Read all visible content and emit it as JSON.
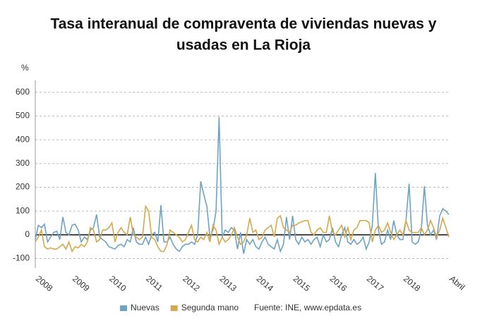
{
  "chart_data": {
    "type": "line",
    "title": [
      "Tasa interanual de compraventa de viviendas nuevas y",
      "usadas en La Rioja"
    ],
    "y_label": "%",
    "source": "Fuente: INE, www.epdata.es",
    "categories": [
      "2008",
      null,
      null,
      null,
      null,
      null,
      null,
      null,
      null,
      null,
      null,
      null,
      "2009",
      null,
      null,
      null,
      null,
      null,
      null,
      null,
      null,
      null,
      null,
      null,
      "2010",
      null,
      null,
      null,
      null,
      null,
      null,
      null,
      null,
      null,
      null,
      null,
      "2011",
      null,
      null,
      null,
      null,
      null,
      null,
      null,
      null,
      null,
      null,
      null,
      "2012",
      null,
      null,
      null,
      null,
      null,
      null,
      null,
      null,
      null,
      null,
      null,
      "2013",
      null,
      null,
      null,
      null,
      null,
      null,
      null,
      null,
      null,
      null,
      null,
      "2014",
      null,
      null,
      null,
      null,
      null,
      null,
      null,
      null,
      null,
      null,
      null,
      "2015",
      null,
      null,
      null,
      null,
      null,
      null,
      null,
      null,
      null,
      null,
      null,
      "2016",
      null,
      null,
      null,
      null,
      null,
      null,
      null,
      null,
      null,
      null,
      null,
      "2017",
      null,
      null,
      null,
      null,
      null,
      null,
      null,
      null,
      null,
      null,
      null,
      "2018",
      null,
      null,
      null,
      null,
      null,
      null,
      null,
      null,
      null,
      null,
      null,
      null,
      null,
      null,
      "Abril"
    ],
    "series": [
      {
        "name": "Nuevas",
        "color": "#6fa3c2",
        "values": [
          -20,
          40,
          30,
          45,
          -30,
          -10,
          10,
          15,
          -20,
          75,
          10,
          0,
          40,
          45,
          20,
          -30,
          -10,
          -20,
          20,
          30,
          85,
          -10,
          -20,
          -30,
          -50,
          -55,
          -60,
          -45,
          -40,
          -50,
          -20,
          -30,
          30,
          -30,
          -40,
          -40,
          -10,
          -40,
          0,
          10,
          -30,
          125,
          -30,
          -30,
          -10,
          -40,
          -60,
          -70,
          -50,
          -40,
          -40,
          -30,
          -40,
          0,
          225,
          170,
          120,
          -10,
          20,
          100,
          495,
          -10,
          20,
          10,
          30,
          20,
          -60,
          10,
          -80,
          -20,
          -40,
          -20,
          -50,
          -60,
          -30,
          -10,
          -40,
          -50,
          -60,
          -20,
          -70,
          -40,
          75,
          -20,
          80,
          -20,
          -40,
          -10,
          -30,
          -20,
          -40,
          -20,
          -10,
          -50,
          0,
          -30,
          -20,
          30,
          -30,
          -50,
          0,
          30,
          -30,
          -40,
          -20,
          -40,
          -30,
          -10,
          -60,
          -30,
          40,
          260,
          20,
          -40,
          -30,
          20,
          -20,
          60,
          0,
          -20,
          -20,
          60,
          215,
          -30,
          -40,
          -30,
          20,
          205,
          40,
          0,
          20,
          -20,
          80,
          110,
          100,
          85
        ]
      },
      {
        "name": "Segunda mano",
        "color": "#d4a84b",
        "values": [
          -30,
          -10,
          20,
          -50,
          -60,
          -55,
          -60,
          -60,
          -50,
          -40,
          -60,
          -30,
          -70,
          -50,
          -55,
          -40,
          -50,
          -30,
          30,
          20,
          -30,
          -20,
          20,
          20,
          30,
          50,
          -30,
          10,
          30,
          10,
          0,
          75,
          0,
          -10,
          -20,
          -10,
          120,
          100,
          -10,
          -20,
          -50,
          -70,
          -70,
          -40,
          20,
          10,
          0,
          -10,
          -30,
          -20,
          10,
          40,
          -20,
          -30,
          -10,
          -20,
          10,
          -30,
          40,
          20,
          -40,
          -10,
          -30,
          -20,
          0,
          30,
          -10,
          -40,
          -30,
          0,
          70,
          10,
          20,
          -20,
          -10,
          20,
          30,
          40,
          -10,
          70,
          80,
          30,
          20,
          10,
          40,
          40,
          50,
          55,
          60,
          60,
          10,
          0,
          20,
          30,
          10,
          10,
          80,
          10,
          0,
          20,
          40,
          -10,
          30,
          -20,
          20,
          30,
          60,
          60,
          60,
          50,
          -30,
          20,
          40,
          10,
          20,
          50,
          10,
          -20,
          0,
          20,
          0,
          60,
          20,
          10,
          10,
          10,
          30,
          0,
          20,
          60,
          30,
          -10,
          20,
          70,
          30,
          -10
        ]
      }
    ],
    "ylim": [
      -140,
      650
    ],
    "yticks": [
      -100,
      0,
      100,
      200,
      300,
      400,
      500,
      600
    ],
    "grid": true
  }
}
